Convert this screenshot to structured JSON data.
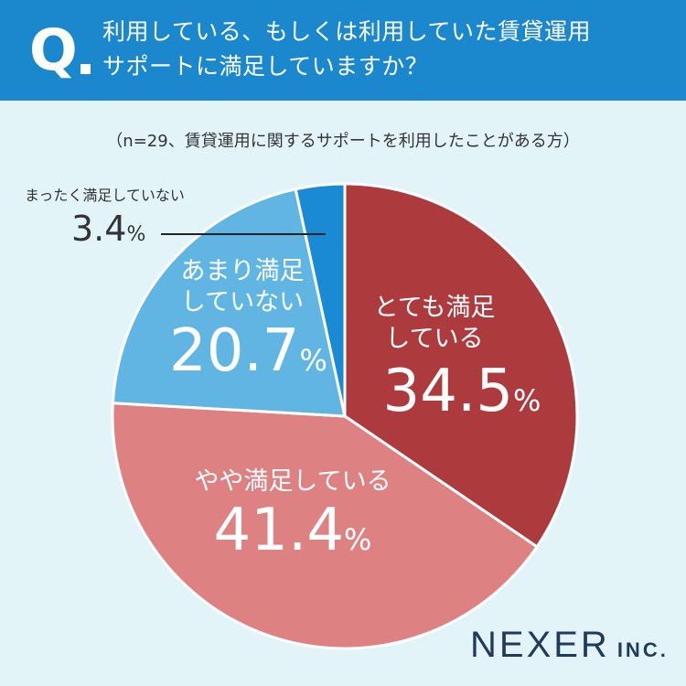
{
  "question": {
    "mark": "Q",
    "line1": "利用している、もしくは利用していた賃貸運用",
    "line2": "サポートに満足していますか？"
  },
  "note": "（n=29、賃貸運用に関するサポートを利用したことがある方）",
  "chart_data": {
    "type": "pie",
    "title": "利用している、もしくは利用していた賃貸運用サポートに満足していますか？",
    "unit": "%",
    "slices": [
      {
        "name": "とても満足している",
        "value": 34.5,
        "color": "#ad3a3d"
      },
      {
        "name": "やや満足している",
        "value": 41.4,
        "color": "#de8182"
      },
      {
        "name": "あまり満足していない",
        "value": 20.7,
        "color": "#60b5e3"
      },
      {
        "name": "まったく満足していない",
        "value": 3.4,
        "color": "#1a8ad4"
      }
    ]
  },
  "labels": {
    "very": {
      "name1": "とても満足",
      "name2": "している",
      "pct": "34.5",
      "unit": "%"
    },
    "somewhat": {
      "name1": "やや満足している",
      "pct": "41.4",
      "unit": "%"
    },
    "not_very": {
      "name1": "あまり満足",
      "name2": "していない",
      "pct": "20.7",
      "unit": "%"
    },
    "not_at_all": {
      "name1": "まったく満足していない",
      "pct": "3.4",
      "unit": "%"
    }
  },
  "brand": {
    "name": "NEXER",
    "suffix": "INC."
  }
}
